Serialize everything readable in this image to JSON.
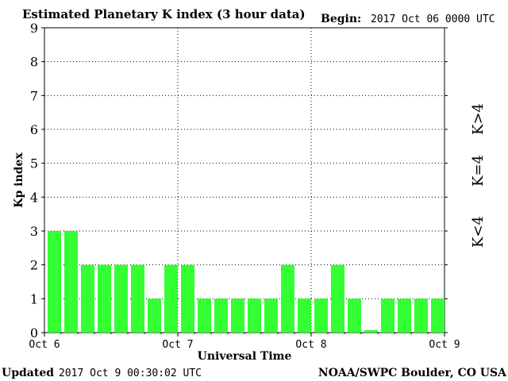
{
  "header": {
    "title": "Estimated Planetary K index (3 hour data)",
    "begin_label": "Begin:",
    "begin_value": "2017 Oct 06 0000 UTC"
  },
  "footer": {
    "updated_label": "Updated",
    "updated_value": "2017 Oct  9 00:30:02 UTC",
    "source": "NOAA/SWPC Boulder, CO USA"
  },
  "legend": [
    {
      "label": "K>4",
      "color": "#ff3300"
    },
    {
      "label": "K=4",
      "color": "#ffd700"
    },
    {
      "label": "K<4",
      "color": "#33ff33"
    }
  ],
  "chart_data": {
    "type": "bar",
    "title": "Estimated Planetary K index (3 hour data)",
    "xlabel": "Universal Time",
    "ylabel": "Kp index",
    "ylim": [
      0,
      9
    ],
    "yticks": [
      "0",
      "1",
      "2",
      "3",
      "4",
      "5",
      "6",
      "7",
      "8",
      "9"
    ],
    "xticks": [
      "Oct 6",
      "Oct 7",
      "Oct 8",
      "Oct 9"
    ],
    "bar_color": "#33ff33",
    "grid": true,
    "values": [
      3,
      3,
      2,
      2,
      2,
      2,
      1,
      2,
      2,
      1,
      1,
      1,
      1,
      1,
      2,
      1,
      1,
      2,
      1,
      0.07,
      1,
      1,
      1,
      1
    ]
  }
}
